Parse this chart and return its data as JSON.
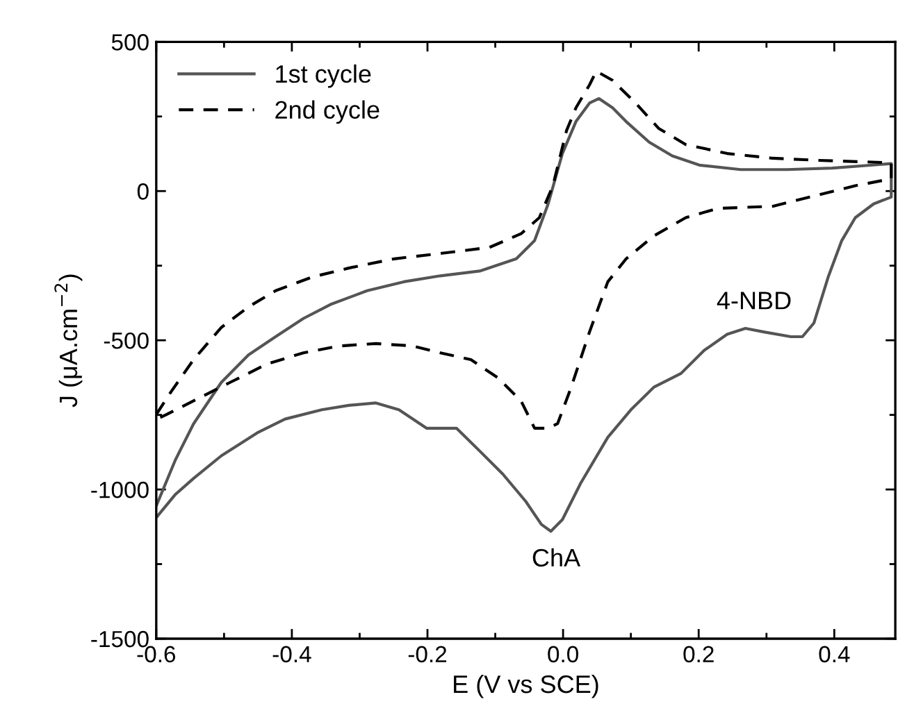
{
  "chart_data": {
    "type": "line",
    "xlabel": "E (V vs SCE)",
    "ylabel": "J (μA.cm$^{−2}$)",
    "xlim": [
      -0.6,
      0.49
    ],
    "ylim": [
      -1500,
      500
    ],
    "xticks": [
      -0.6,
      {
        "value": -0.5,
        "label": null
      },
      -0.4,
      {
        "value": -0.3,
        "label": null
      },
      -0.2,
      {
        "value": -0.1,
        "label": null
      },
      {
        "value": 0,
        "label": "0.0"
      },
      {
        "value": 0.1,
        "label": null
      },
      0.2,
      {
        "value": 0.3,
        "label": null
      },
      0.4
    ],
    "yticks": [
      -1500,
      {
        "value": -1250,
        "label": null
      },
      -1000,
      {
        "value": -750,
        "label": null
      },
      -500,
      {
        "value": -250,
        "label": null
      },
      0,
      {
        "value": 250,
        "label": null
      },
      500
    ],
    "grid": false,
    "legend": "top left",
    "marker": "none",
    "series": [
      {
        "name": "1st cycle",
        "color": "#555555",
        "line_style": "solid",
        "x": [
          -0.6,
          -0.572,
          -0.545,
          -0.504,
          -0.464,
          -0.424,
          -0.383,
          -0.343,
          -0.289,
          -0.235,
          -0.181,
          -0.123,
          -0.069,
          -0.042,
          -0.022,
          -0.001,
          0.019,
          0.039,
          0.053,
          0.073,
          0.093,
          0.127,
          0.161,
          0.201,
          0.262,
          0.33,
          0.397,
          0.484,
          0.484,
          0.458,
          0.431,
          0.411,
          0.391,
          0.37,
          0.353,
          0.336,
          0.296,
          0.269,
          0.242,
          0.208,
          0.174,
          0.134,
          0.1,
          0.066,
          0.026,
          -0.001,
          -0.018,
          -0.032,
          -0.055,
          -0.089,
          -0.123,
          -0.157,
          -0.201,
          -0.242,
          -0.276,
          -0.316,
          -0.356,
          -0.41,
          -0.451,
          -0.504,
          -0.545,
          -0.572,
          -0.6
        ],
        "values": [
          -1055,
          -902,
          -780,
          -641,
          -549,
          -488,
          -427,
          -380,
          -334,
          -304,
          -284,
          -268,
          -227,
          -166,
          -43,
          126,
          233,
          295,
          310,
          279,
          233,
          164,
          118,
          87,
          72,
          72,
          77,
          92,
          -20,
          -43,
          -89,
          -166,
          -288,
          -442,
          -488,
          -488,
          -472,
          -460,
          -480,
          -534,
          -611,
          -657,
          -733,
          -825,
          -979,
          -1101,
          -1140,
          -1117,
          -1040,
          -948,
          -871,
          -795,
          -795,
          -733,
          -710,
          -718,
          -733,
          -764,
          -810,
          -887,
          -963,
          -1017,
          -1094
        ]
      },
      {
        "name": "2nd cycle",
        "color": "#000000",
        "line_style": "dashed",
        "x": [
          -0.6,
          -0.578,
          -0.545,
          -0.504,
          -0.464,
          -0.424,
          -0.37,
          -0.316,
          -0.249,
          -0.181,
          -0.109,
          -0.062,
          -0.035,
          -0.015,
          0.005,
          0.019,
          0.039,
          0.049,
          0.073,
          0.107,
          0.141,
          0.181,
          0.242,
          0.309,
          0.377,
          0.484,
          0.484,
          0.431,
          0.364,
          0.309,
          0.228,
          0.181,
          0.134,
          0.093,
          0.066,
          0.039,
          0.012,
          -0.008,
          -0.022,
          -0.042,
          -0.062,
          -0.096,
          -0.136,
          -0.181,
          -0.222,
          -0.276,
          -0.33,
          -0.383,
          -0.437,
          -0.491,
          -0.545,
          -0.585,
          -0.6
        ],
        "values": [
          -749,
          -672,
          -565,
          -457,
          -388,
          -334,
          -288,
          -258,
          -227,
          -209,
          -189,
          -143,
          -89,
          18,
          202,
          279,
          356,
          402,
          371,
          295,
          210,
          156,
          126,
          110,
          103,
          95,
          41,
          18,
          -20,
          -51,
          -58,
          -89,
          -150,
          -227,
          -304,
          -472,
          -657,
          -779,
          -795,
          -795,
          -703,
          -626,
          -565,
          -542,
          -519,
          -511,
          -519,
          -542,
          -580,
          -641,
          -703,
          -749,
          -765
        ]
      }
    ],
    "annotations": [
      "ChA",
      "4-NBD"
    ]
  }
}
